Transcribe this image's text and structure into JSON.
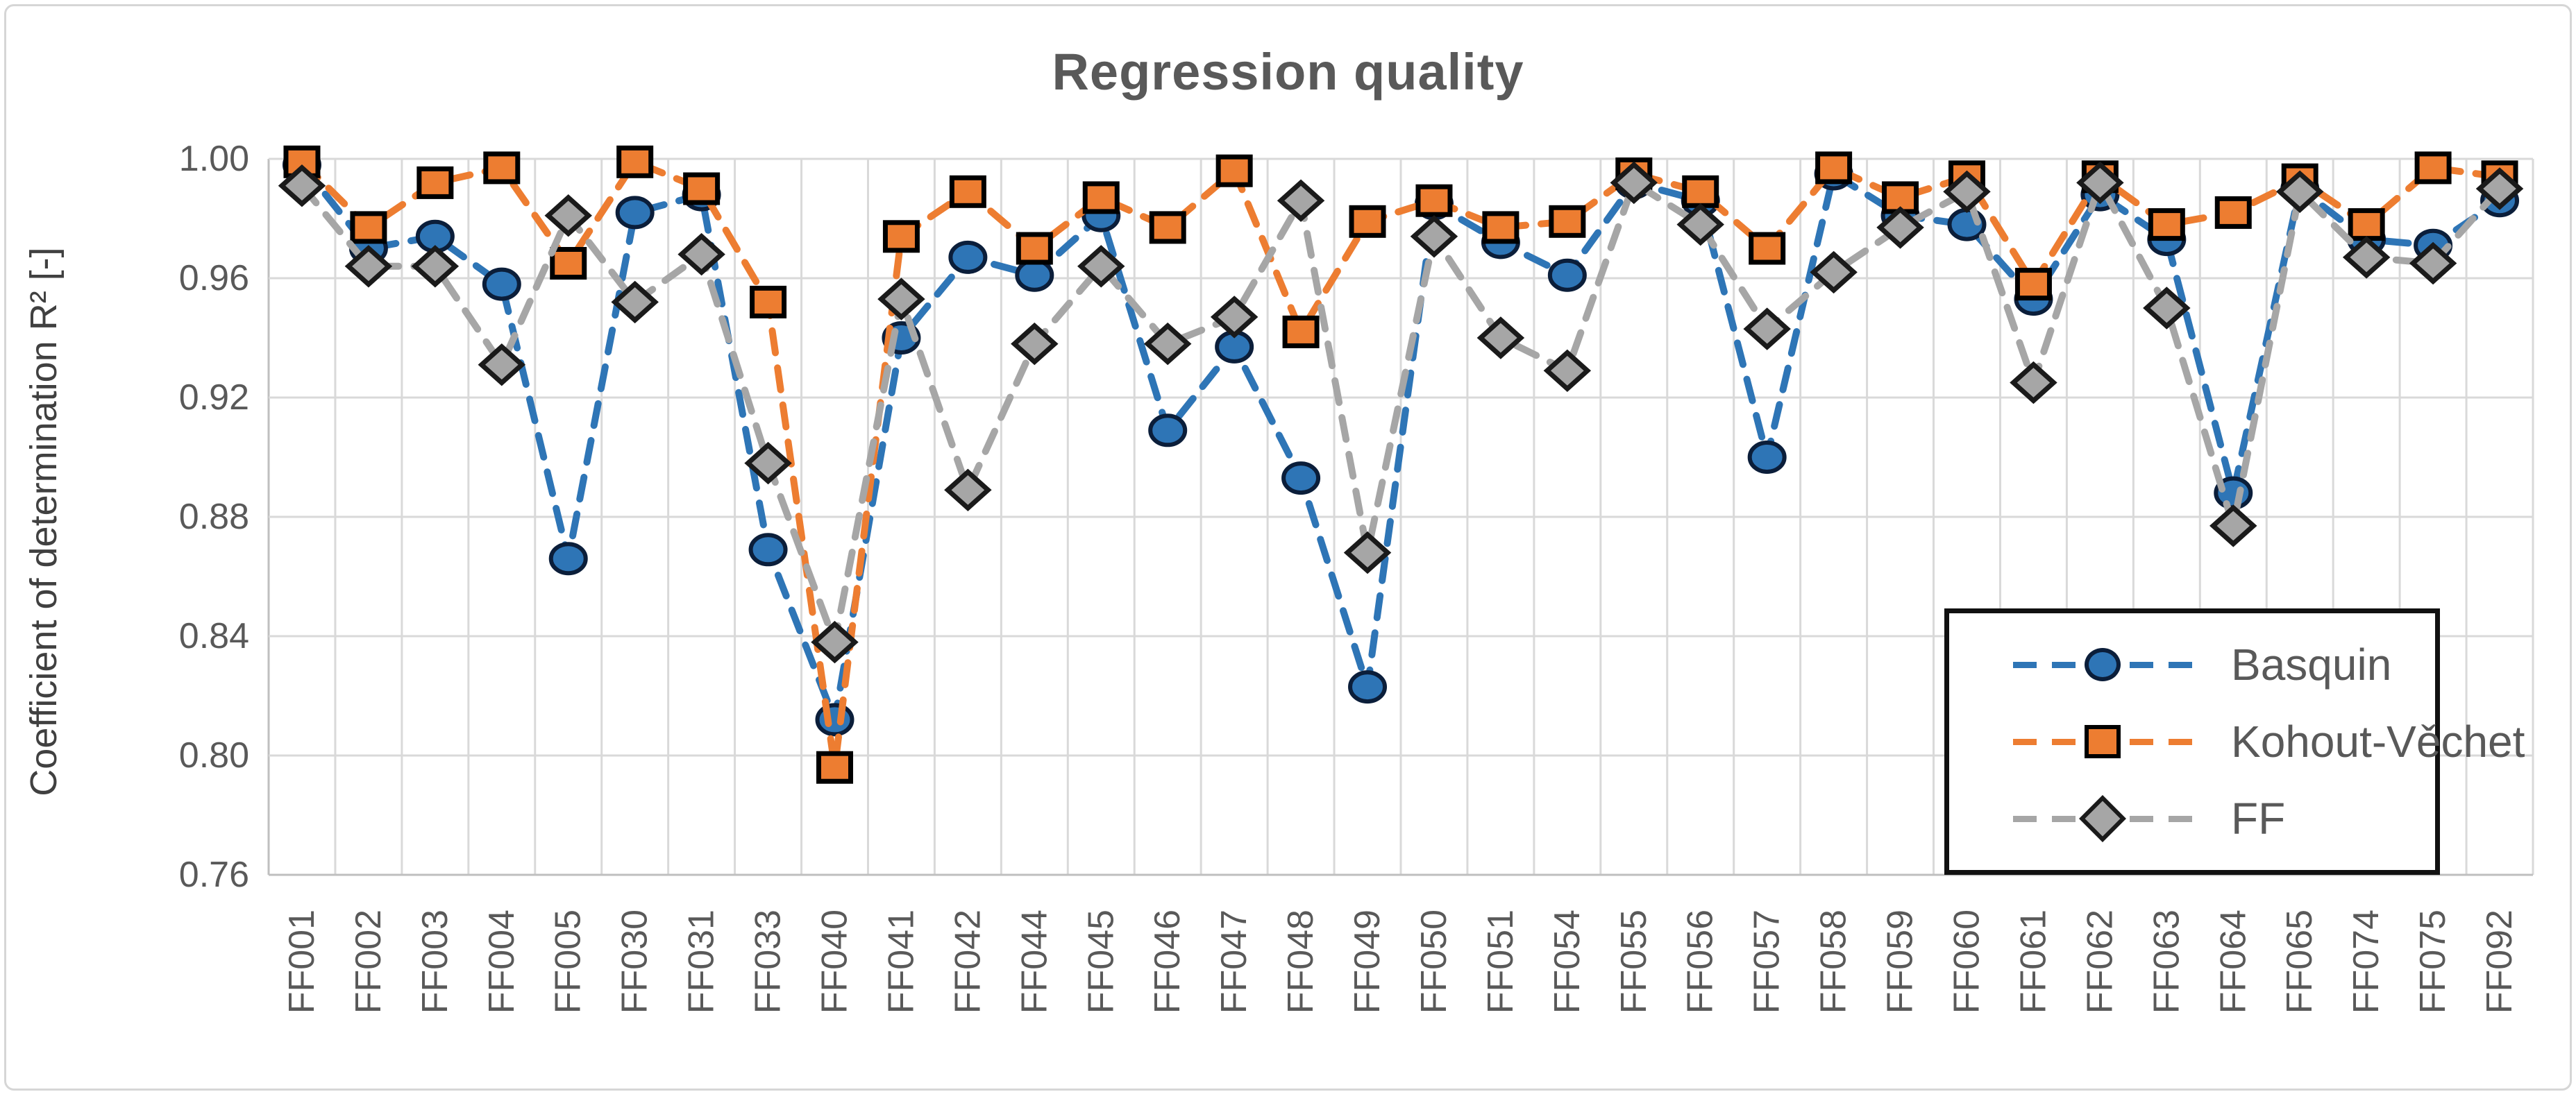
{
  "chart_data": {
    "type": "line",
    "title": "Regression quality",
    "ylabel": "Coefficient of determination R² [-]",
    "xlabel": "",
    "ylim": [
      0.76,
      1.0
    ],
    "yticks": [
      "1.00",
      "0.96",
      "0.92",
      "0.88",
      "0.84",
      "0.80",
      "0.76"
    ],
    "grid": true,
    "legend_position": "inside-right",
    "line_style": "dashed",
    "categories": [
      "FF001",
      "FF002",
      "FF003",
      "FF004",
      "FF005",
      "FF030",
      "FF031",
      "FF033",
      "FF040",
      "FF041",
      "FF042",
      "FF044",
      "FF045",
      "FF046",
      "FF047",
      "FF048",
      "FF049",
      "FF050",
      "FF051",
      "FF054",
      "FF055",
      "FF056",
      "FF057",
      "FF058",
      "FF059",
      "FF060",
      "FF061",
      "FF062",
      "FF063",
      "FF064",
      "FF065",
      "FF074",
      "FF075",
      "FF092"
    ],
    "series": [
      {
        "name": "Basquin",
        "marker": "circle",
        "color": "#2E75B6",
        "values": [
          0.998,
          0.97,
          0.974,
          0.958,
          0.866,
          0.982,
          0.988,
          0.869,
          0.812,
          0.94,
          0.967,
          0.961,
          0.981,
          0.909,
          0.937,
          0.893,
          0.823,
          0.985,
          0.972,
          0.961,
          0.992,
          0.986,
          0.9,
          0.995,
          0.981,
          0.978,
          0.953,
          0.988,
          0.973,
          0.888,
          0.99,
          0.973,
          0.971,
          0.986
        ]
      },
      {
        "name": "Kohout-Věchet",
        "marker": "square",
        "color": "#ED7D31",
        "values": [
          0.999,
          0.977,
          0.992,
          0.997,
          0.965,
          0.999,
          0.99,
          0.952,
          0.796,
          0.974,
          0.989,
          0.97,
          0.987,
          0.977,
          0.996,
          0.942,
          0.979,
          0.986,
          0.977,
          0.979,
          0.995,
          0.989,
          0.97,
          0.997,
          0.987,
          0.994,
          0.958,
          0.994,
          0.978,
          0.982,
          0.993,
          0.978,
          0.997,
          0.994
        ]
      },
      {
        "name": "FF",
        "marker": "diamond",
        "color": "#A6A6A6",
        "values": [
          0.991,
          0.964,
          0.964,
          0.931,
          0.981,
          0.952,
          0.968,
          0.898,
          0.838,
          0.953,
          0.889,
          0.938,
          0.964,
          0.938,
          0.947,
          0.986,
          0.868,
          0.974,
          0.94,
          0.929,
          0.992,
          0.978,
          0.943,
          0.962,
          0.977,
          0.989,
          0.925,
          0.992,
          0.95,
          0.877,
          0.989,
          0.967,
          0.965,
          0.99
        ]
      }
    ],
    "colors": {
      "grid": "#D9D9D9",
      "axis": "#BFBFBF",
      "text": "#595959",
      "marker_outline": "#000000"
    }
  }
}
